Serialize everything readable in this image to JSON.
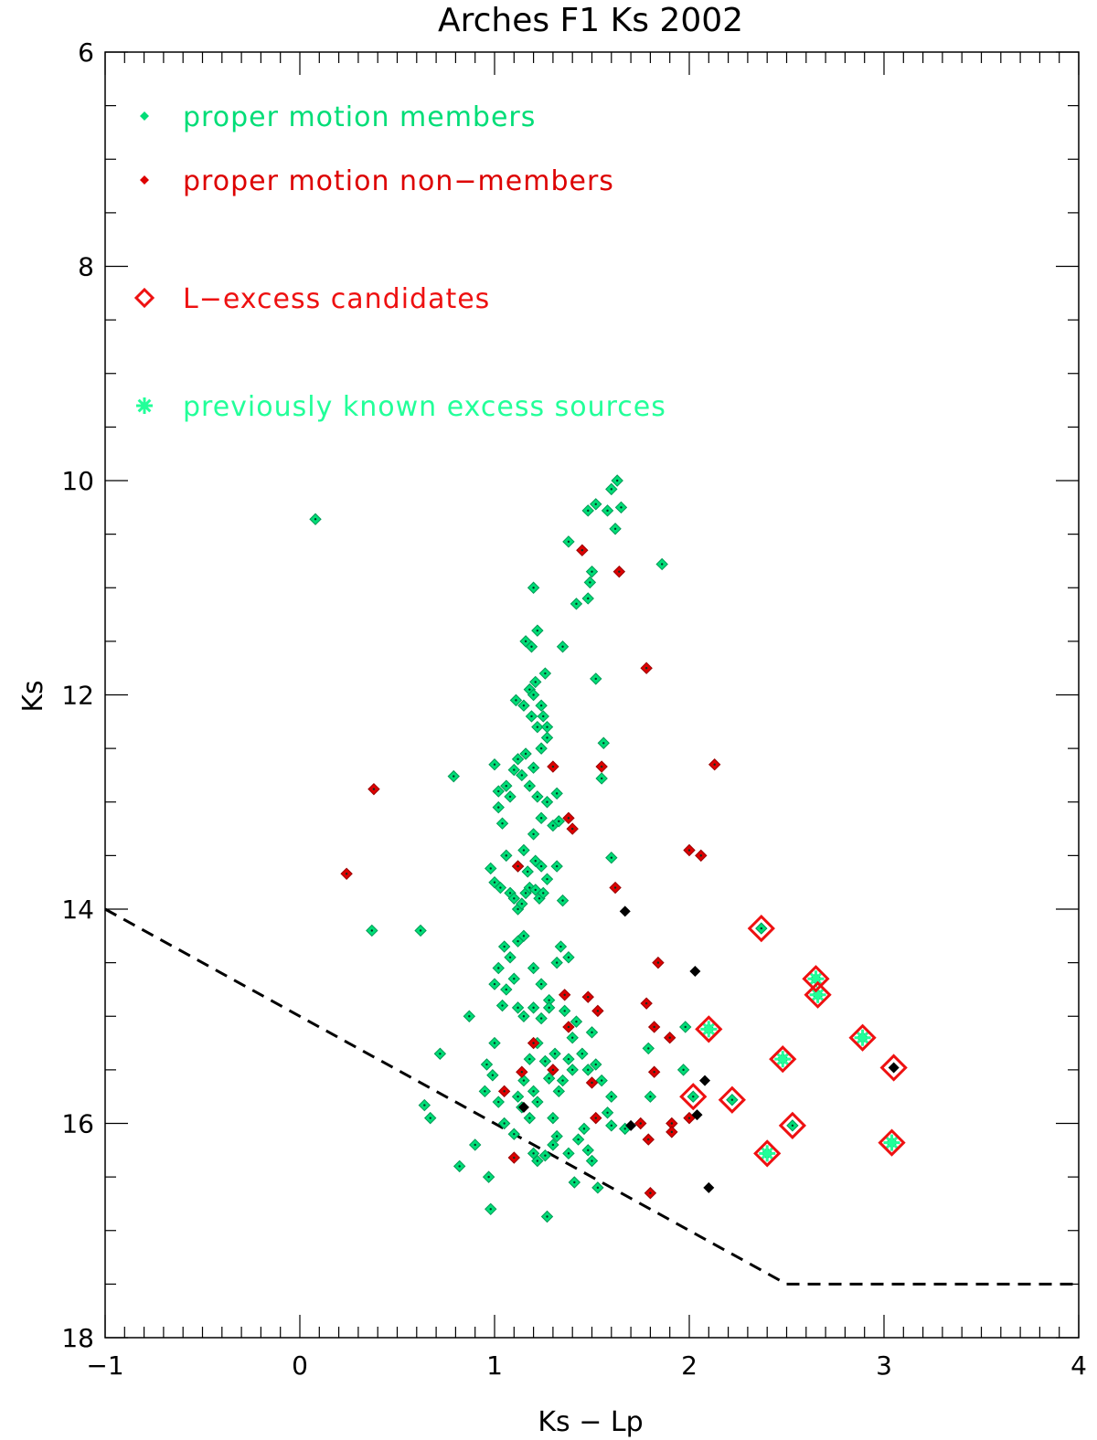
{
  "chart_data": {
    "type": "scatter",
    "title": "Arches F1 Ks 2002",
    "xlabel": "Ks − Lp",
    "ylabel": "Ks",
    "xlim": [
      -1,
      4
    ],
    "ylim": [
      18,
      6
    ],
    "y_inverted": true,
    "x_ticks": [
      -1,
      0,
      1,
      2,
      3,
      4
    ],
    "x_tick_labels": [
      "−1",
      "0",
      "1",
      "2",
      "3",
      "4"
    ],
    "y_ticks": [
      6,
      8,
      10,
      12,
      14,
      16,
      18
    ],
    "y_tick_labels": [
      "6",
      "8",
      "10",
      "12",
      "14",
      "16",
      "18"
    ],
    "grid": false,
    "legend_placement": "top-left",
    "colors": {
      "members": "#00dd77",
      "non_members": "#dd0000",
      "unclassified": "#000000",
      "l_excess": "#ee1111",
      "known_excess": "#22ff99",
      "cut_line": "#000000"
    },
    "legend": [
      {
        "label": "proper motion members",
        "marker": "small-diamond",
        "color": "#00dd77"
      },
      {
        "label": "proper motion non−members",
        "marker": "small-diamond",
        "color": "#dd0000"
      },
      {
        "label": "L−excess candidates",
        "marker": "open-diamond",
        "color": "#ee1111"
      },
      {
        "label": "previously known excess sources",
        "marker": "asterisk",
        "color": "#22ff99"
      }
    ],
    "cut_line": {
      "x": [
        -1,
        2.5,
        4
      ],
      "y": [
        14.0,
        17.5,
        17.5
      ],
      "style": "dashed"
    },
    "series": [
      {
        "name": "proper motion members",
        "points": [
          [
            0.08,
            10.36
          ],
          [
            0.37,
            14.2
          ],
          [
            0.62,
            14.2
          ],
          [
            0.64,
            15.83
          ],
          [
            0.67,
            15.95
          ],
          [
            0.72,
            15.35
          ],
          [
            0.79,
            12.76
          ],
          [
            0.82,
            16.4
          ],
          [
            0.87,
            15.0
          ],
          [
            0.9,
            16.2
          ],
          [
            0.95,
            15.7
          ],
          [
            0.97,
            16.5
          ],
          [
            0.98,
            16.8
          ],
          [
            1.0,
            15.25
          ],
          [
            0.96,
            15.45
          ],
          [
            0.99,
            15.55
          ],
          [
            1.02,
            15.8
          ],
          [
            1.05,
            16.0
          ],
          [
            0.98,
            13.62
          ],
          [
            1.0,
            13.75
          ],
          [
            1.02,
            13.05
          ],
          [
            1.04,
            13.2
          ],
          [
            1.0,
            12.65
          ],
          [
            1.02,
            12.9
          ],
          [
            1.06,
            12.85
          ],
          [
            1.08,
            12.95
          ],
          [
            1.06,
            13.5
          ],
          [
            1.03,
            13.8
          ],
          [
            1.08,
            13.85
          ],
          [
            1.1,
            13.9
          ],
          [
            1.12,
            14.0
          ],
          [
            1.14,
            13.95
          ],
          [
            1.16,
            13.85
          ],
          [
            1.18,
            13.8
          ],
          [
            1.21,
            13.82
          ],
          [
            1.23,
            13.9
          ],
          [
            1.25,
            13.85
          ],
          [
            1.27,
            13.72
          ],
          [
            1.24,
            13.6
          ],
          [
            1.21,
            13.55
          ],
          [
            1.17,
            13.65
          ],
          [
            1.12,
            13.6
          ],
          [
            1.15,
            13.45
          ],
          [
            1.2,
            13.3
          ],
          [
            1.24,
            13.15
          ],
          [
            1.27,
            13.0
          ],
          [
            1.22,
            12.95
          ],
          [
            1.18,
            12.85
          ],
          [
            1.14,
            12.75
          ],
          [
            1.1,
            12.7
          ],
          [
            1.12,
            12.6
          ],
          [
            1.16,
            12.55
          ],
          [
            1.2,
            12.68
          ],
          [
            1.24,
            12.5
          ],
          [
            1.27,
            12.4
          ],
          [
            1.22,
            12.3
          ],
          [
            1.19,
            12.2
          ],
          [
            1.15,
            12.1
          ],
          [
            1.11,
            12.05
          ],
          [
            1.18,
            11.95
          ],
          [
            1.21,
            11.88
          ],
          [
            1.24,
            12.1
          ],
          [
            1.27,
            12.3
          ],
          [
            1.25,
            12.2
          ],
          [
            1.2,
            12.0
          ],
          [
            1.16,
            11.5
          ],
          [
            1.19,
            11.55
          ],
          [
            1.22,
            11.4
          ],
          [
            1.26,
            11.8
          ],
          [
            1.35,
            11.55
          ],
          [
            1.2,
            11.0
          ],
          [
            1.38,
            10.57
          ],
          [
            1.48,
            10.28
          ],
          [
            1.52,
            10.22
          ],
          [
            1.58,
            10.28
          ],
          [
            1.6,
            10.08
          ],
          [
            1.63,
            10.0
          ],
          [
            1.65,
            10.25
          ],
          [
            1.62,
            10.45
          ],
          [
            1.5,
            10.85
          ],
          [
            1.49,
            10.95
          ],
          [
            1.42,
            11.15
          ],
          [
            1.48,
            11.1
          ],
          [
            1.86,
            10.78
          ],
          [
            1.52,
            11.85
          ],
          [
            1.56,
            12.45
          ],
          [
            1.55,
            12.78
          ],
          [
            1.32,
            12.92
          ],
          [
            1.3,
            13.22
          ],
          [
            1.33,
            13.18
          ],
          [
            1.32,
            13.6
          ],
          [
            1.6,
            13.52
          ],
          [
            1.35,
            13.92
          ],
          [
            1.05,
            14.35
          ],
          [
            1.08,
            14.45
          ],
          [
            1.12,
            14.3
          ],
          [
            1.15,
            14.25
          ],
          [
            1.02,
            14.55
          ],
          [
            1.0,
            14.7
          ],
          [
            1.06,
            14.75
          ],
          [
            1.1,
            14.65
          ],
          [
            1.04,
            14.9
          ],
          [
            1.12,
            14.92
          ],
          [
            1.15,
            15.0
          ],
          [
            1.2,
            14.55
          ],
          [
            1.24,
            14.7
          ],
          [
            1.28,
            14.85
          ],
          [
            1.32,
            14.5
          ],
          [
            1.34,
            14.35
          ],
          [
            1.38,
            14.45
          ],
          [
            1.36,
            14.95
          ],
          [
            1.4,
            15.2
          ],
          [
            1.42,
            15.05
          ],
          [
            1.45,
            15.35
          ],
          [
            1.48,
            15.5
          ],
          [
            1.5,
            15.15
          ],
          [
            1.52,
            15.45
          ],
          [
            1.55,
            15.6
          ],
          [
            1.58,
            15.9
          ],
          [
            1.6,
            15.75
          ],
          [
            1.46,
            16.05
          ],
          [
            1.43,
            16.15
          ],
          [
            1.48,
            16.25
          ],
          [
            1.5,
            16.35
          ],
          [
            1.53,
            16.6
          ],
          [
            1.41,
            16.55
          ],
          [
            1.4,
            15.5
          ],
          [
            1.33,
            15.7
          ],
          [
            1.3,
            15.95
          ],
          [
            1.32,
            16.12
          ],
          [
            1.3,
            16.2
          ],
          [
            1.26,
            16.3
          ],
          [
            1.22,
            16.35
          ],
          [
            1.2,
            16.28
          ],
          [
            1.27,
            16.87
          ],
          [
            1.2,
            15.7
          ],
          [
            1.15,
            15.6
          ],
          [
            1.18,
            15.4
          ],
          [
            1.22,
            15.25
          ],
          [
            1.26,
            15.42
          ],
          [
            1.28,
            15.58
          ],
          [
            1.31,
            15.35
          ],
          [
            1.24,
            15.02
          ],
          [
            1.2,
            14.92
          ],
          [
            1.22,
            15.8
          ],
          [
            1.18,
            15.95
          ],
          [
            1.14,
            15.85
          ],
          [
            1.12,
            15.75
          ],
          [
            1.1,
            16.1
          ],
          [
            1.35,
            15.6
          ],
          [
            1.38,
            15.4
          ],
          [
            1.28,
            14.92
          ],
          [
            1.38,
            16.28
          ],
          [
            1.6,
            16.02
          ],
          [
            1.67,
            16.05
          ],
          [
            1.79,
            15.3
          ],
          [
            1.8,
            15.75
          ],
          [
            1.98,
            15.1
          ],
          [
            1.97,
            15.5
          ],
          [
            2.02,
            15.75
          ],
          [
            2.1,
            15.12
          ],
          [
            2.22,
            15.78
          ],
          [
            2.37,
            14.18
          ],
          [
            2.4,
            16.28
          ],
          [
            2.48,
            15.4
          ],
          [
            2.53,
            16.02
          ],
          [
            2.65,
            14.65
          ],
          [
            2.66,
            14.8
          ],
          [
            2.89,
            15.2
          ],
          [
            3.04,
            16.18
          ]
        ]
      },
      {
        "name": "proper motion non−members",
        "points": [
          [
            0.24,
            13.67
          ],
          [
            0.38,
            12.88
          ],
          [
            1.05,
            15.7
          ],
          [
            1.1,
            16.32
          ],
          [
            1.12,
            13.6
          ],
          [
            1.14,
            15.52
          ],
          [
            1.2,
            15.25
          ],
          [
            1.3,
            12.67
          ],
          [
            1.3,
            15.5
          ],
          [
            1.38,
            13.15
          ],
          [
            1.4,
            13.25
          ],
          [
            1.36,
            14.8
          ],
          [
            1.38,
            15.1
          ],
          [
            1.45,
            10.65
          ],
          [
            1.48,
            14.82
          ],
          [
            1.5,
            15.62
          ],
          [
            1.52,
            15.95
          ],
          [
            1.53,
            14.95
          ],
          [
            1.55,
            12.67
          ],
          [
            1.62,
            13.8
          ],
          [
            1.64,
            10.85
          ],
          [
            1.75,
            16.0
          ],
          [
            1.78,
            11.75
          ],
          [
            1.78,
            14.88
          ],
          [
            1.79,
            16.15
          ],
          [
            1.8,
            16.65
          ],
          [
            1.82,
            15.1
          ],
          [
            1.82,
            15.52
          ],
          [
            1.84,
            14.5
          ],
          [
            1.9,
            15.2
          ],
          [
            1.91,
            16.0
          ],
          [
            1.91,
            16.08
          ],
          [
            2.0,
            13.45
          ],
          [
            2.0,
            15.95
          ],
          [
            2.06,
            13.5
          ],
          [
            2.13,
            12.65
          ]
        ]
      },
      {
        "name": "unclassified",
        "points": [
          [
            1.15,
            15.85
          ],
          [
            1.67,
            14.02
          ],
          [
            1.7,
            16.02
          ],
          [
            2.03,
            14.58
          ],
          [
            2.04,
            15.92
          ],
          [
            2.08,
            15.6
          ],
          [
            2.1,
            16.6
          ],
          [
            3.05,
            15.48
          ]
        ]
      },
      {
        "name": "L−excess candidates",
        "points": [
          [
            2.02,
            15.75
          ],
          [
            2.1,
            15.12
          ],
          [
            2.22,
            15.78
          ],
          [
            2.37,
            14.18
          ],
          [
            2.4,
            16.28
          ],
          [
            2.48,
            15.4
          ],
          [
            2.53,
            16.02
          ],
          [
            2.65,
            14.65
          ],
          [
            2.66,
            14.8
          ],
          [
            2.89,
            15.2
          ],
          [
            3.05,
            15.48
          ],
          [
            3.04,
            16.18
          ]
        ]
      },
      {
        "name": "previously known excess sources",
        "points": [
          [
            2.1,
            15.12
          ],
          [
            2.4,
            16.28
          ],
          [
            2.48,
            15.4
          ],
          [
            2.65,
            14.65
          ],
          [
            2.66,
            14.8
          ],
          [
            2.89,
            15.2
          ],
          [
            3.04,
            16.18
          ]
        ]
      }
    ]
  }
}
